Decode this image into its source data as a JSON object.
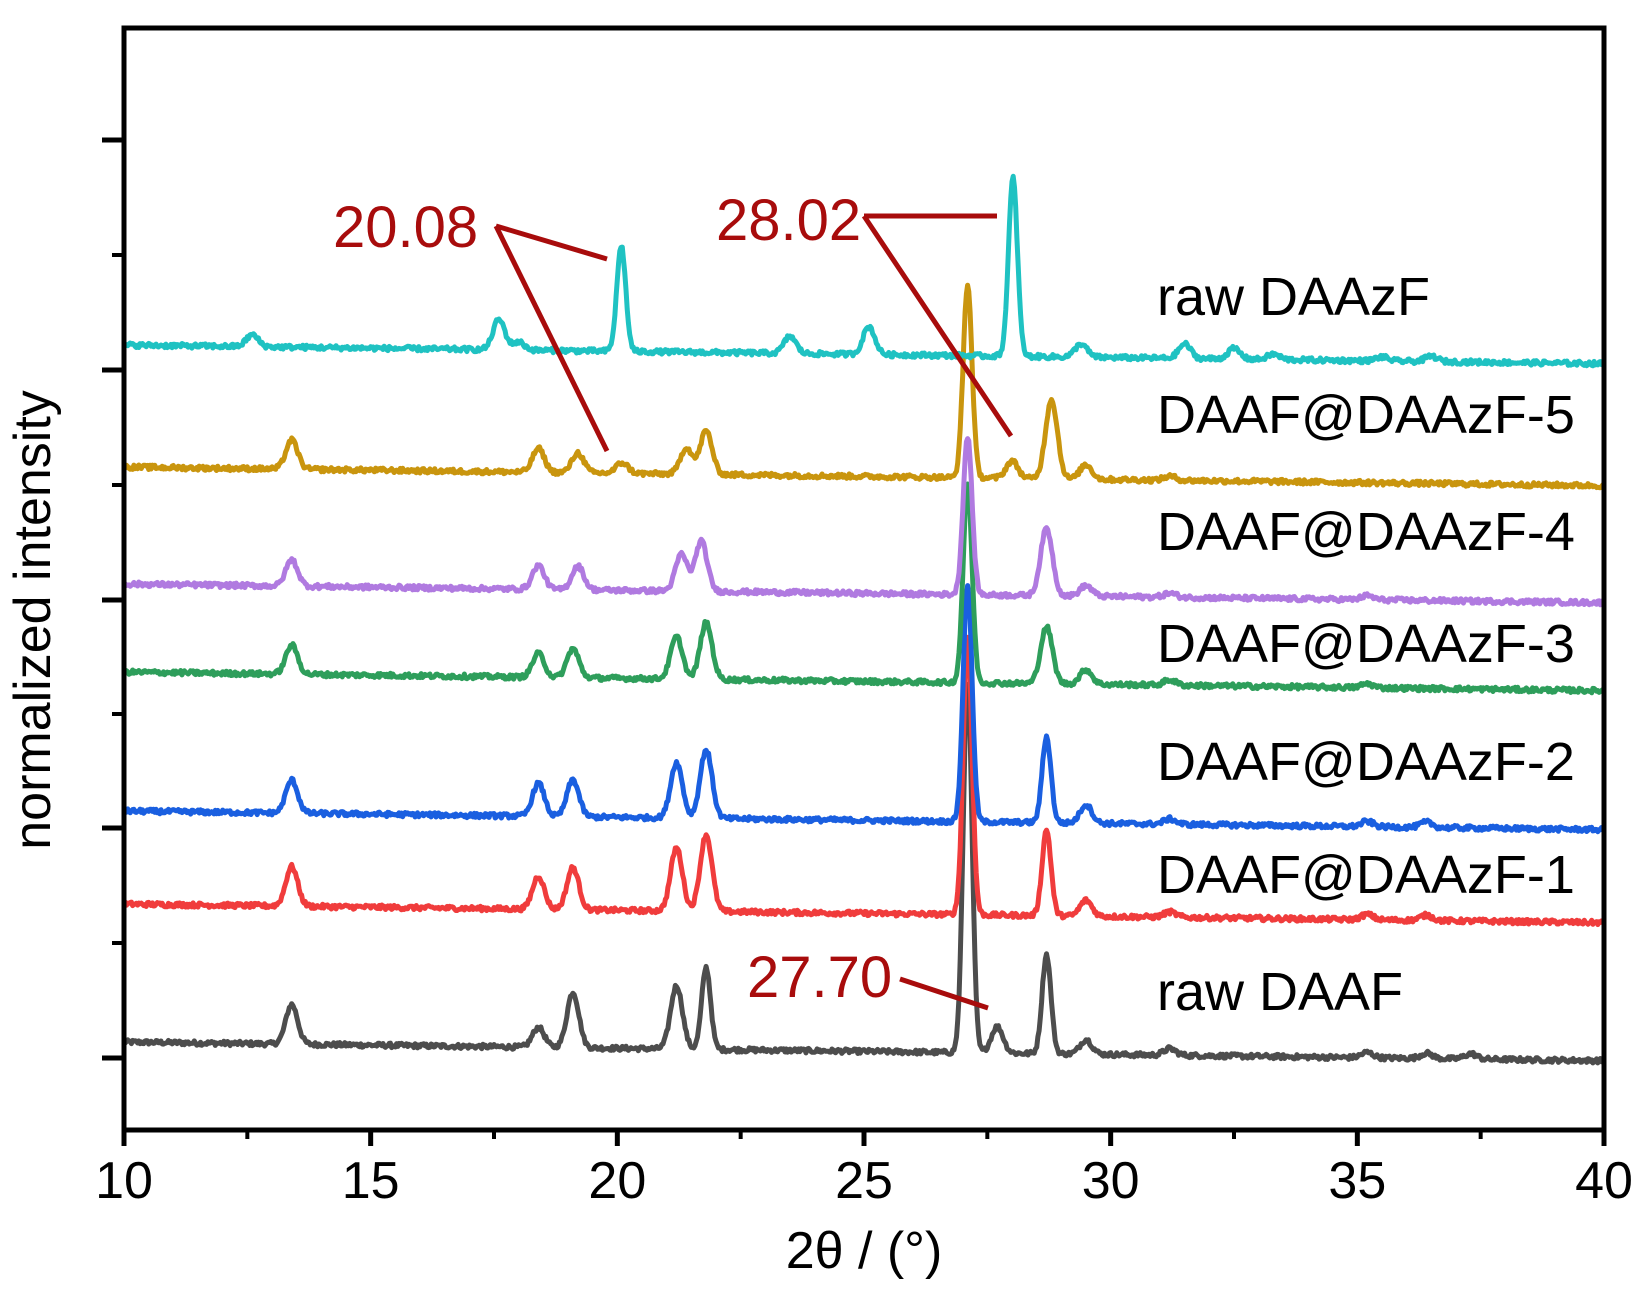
{
  "chart_data": {
    "type": "line",
    "title": "",
    "xlabel": "2θ / (°)",
    "ylabel": "normalized intensity",
    "xlim": [
      10,
      40
    ],
    "x_ticks": [
      10,
      15,
      20,
      25,
      30,
      35,
      40
    ],
    "x_tick_labels": [
      "10",
      "15",
      "20",
      "25",
      "30",
      "35",
      "40"
    ],
    "y_tick_labels_shown": false,
    "grid": false,
    "legend": "labels-at-right-of-each-curve",
    "series": [
      {
        "name": "raw DAAF",
        "color": "#4d4d4d",
        "baseline": [
          0.3,
          0.05
        ],
        "peaks": [
          [
            13.4,
            3.0
          ],
          [
            18.4,
            1.5
          ],
          [
            19.1,
            4.2
          ],
          [
            21.2,
            4.8
          ],
          [
            21.8,
            6.2
          ],
          [
            27.1,
            28.0
          ],
          [
            27.7,
            2.0
          ],
          [
            28.7,
            7.5
          ],
          [
            29.5,
            1.1
          ],
          [
            31.2,
            0.5
          ],
          [
            35.2,
            0.4
          ],
          [
            36.4,
            0.4
          ],
          [
            37.3,
            0.4
          ]
        ]
      },
      {
        "name": "DAAF@DAAzF-1",
        "color": "#f03c3c",
        "baseline": [
          0.3,
          0.05
        ],
        "peaks": [
          [
            13.4,
            3.0
          ],
          [
            18.4,
            2.5
          ],
          [
            19.1,
            3.2
          ],
          [
            21.2,
            4.8
          ],
          [
            21.8,
            5.8
          ],
          [
            27.1,
            21.0
          ],
          [
            28.7,
            6.5
          ],
          [
            29.5,
            1.2
          ],
          [
            31.2,
            0.4
          ],
          [
            35.2,
            0.4
          ],
          [
            36.4,
            0.4
          ]
        ]
      },
      {
        "name": "DAAF@DAAzF-2",
        "color": "#1a5fe0",
        "baseline": [
          0.3,
          0.05
        ],
        "peaks": [
          [
            13.4,
            2.5
          ],
          [
            18.4,
            2.5
          ],
          [
            19.1,
            2.8
          ],
          [
            21.2,
            4.2
          ],
          [
            21.8,
            5.2
          ],
          [
            27.1,
            18.0
          ],
          [
            28.7,
            6.5
          ],
          [
            29.5,
            1.4
          ],
          [
            31.2,
            0.4
          ],
          [
            35.2,
            0.4
          ],
          [
            36.4,
            0.4
          ]
        ]
      },
      {
        "name": "DAAF@DAAzF-3",
        "color": "#2e9e5b",
        "baseline": [
          0.3,
          0.05
        ],
        "peaks": [
          [
            13.4,
            2.2
          ],
          [
            18.4,
            1.8
          ],
          [
            19.1,
            2.2
          ],
          [
            21.2,
            3.2
          ],
          [
            21.8,
            4.3
          ],
          [
            27.1,
            15.0
          ],
          [
            28.7,
            4.3
          ],
          [
            29.5,
            1.1
          ],
          [
            31.2,
            0.4
          ],
          [
            35.2,
            0.3
          ]
        ]
      },
      {
        "name": "DAAF@DAAzF-4",
        "color": "#b07ae0",
        "baseline": [
          0.3,
          0.05
        ],
        "peaks": [
          [
            13.4,
            2.0
          ],
          [
            18.4,
            1.8
          ],
          [
            19.2,
            1.8
          ],
          [
            21.3,
            2.8
          ],
          [
            21.7,
            3.8
          ],
          [
            27.1,
            12.0
          ],
          [
            28.7,
            5.1
          ],
          [
            29.5,
            0.8
          ],
          [
            31.2,
            0.3
          ],
          [
            35.2,
            0.3
          ]
        ]
      },
      {
        "name": "DAAF@DAAzF-5",
        "color": "#c9950e",
        "baseline": [
          0.3,
          0.05
        ],
        "peaks": [
          [
            13.4,
            2.2
          ],
          [
            18.4,
            1.8
          ],
          [
            19.2,
            1.5
          ],
          [
            20.1,
            0.8
          ],
          [
            21.4,
            2.0
          ],
          [
            21.8,
            3.3
          ],
          [
            27.1,
            14.6
          ],
          [
            28.0,
            1.3
          ],
          [
            28.8,
            6.0
          ],
          [
            29.5,
            1.1
          ],
          [
            31.2,
            0.3
          ]
        ]
      },
      {
        "name": "raw DAAzF",
        "color": "#1fc2c2",
        "baseline": [
          0.3,
          0.05
        ],
        "peaks": [
          [
            12.6,
            0.9
          ],
          [
            17.6,
            2.3
          ],
          [
            18.0,
            0.6
          ],
          [
            20.08,
            8.0
          ],
          [
            23.5,
            1.3
          ],
          [
            25.1,
            2.1
          ],
          [
            28.02,
            13.5
          ],
          [
            29.4,
            1.0
          ],
          [
            31.5,
            1.1
          ],
          [
            32.5,
            0.8
          ],
          [
            33.3,
            0.4
          ],
          [
            35.5,
            0.3
          ],
          [
            36.5,
            0.4
          ]
        ]
      }
    ],
    "annotations": [
      {
        "text": "20.08",
        "color": "#a80c0c",
        "points_to_series": [
          "raw DAAzF",
          "DAAF@DAAzF-5"
        ]
      },
      {
        "text": "28.02",
        "color": "#a80c0c",
        "points_to_series": [
          "raw DAAzF",
          "DAAF@DAAzF-5"
        ]
      },
      {
        "text": "27.70",
        "color": "#a80c0c",
        "points_to_series": [
          "raw DAAF"
        ]
      }
    ]
  }
}
